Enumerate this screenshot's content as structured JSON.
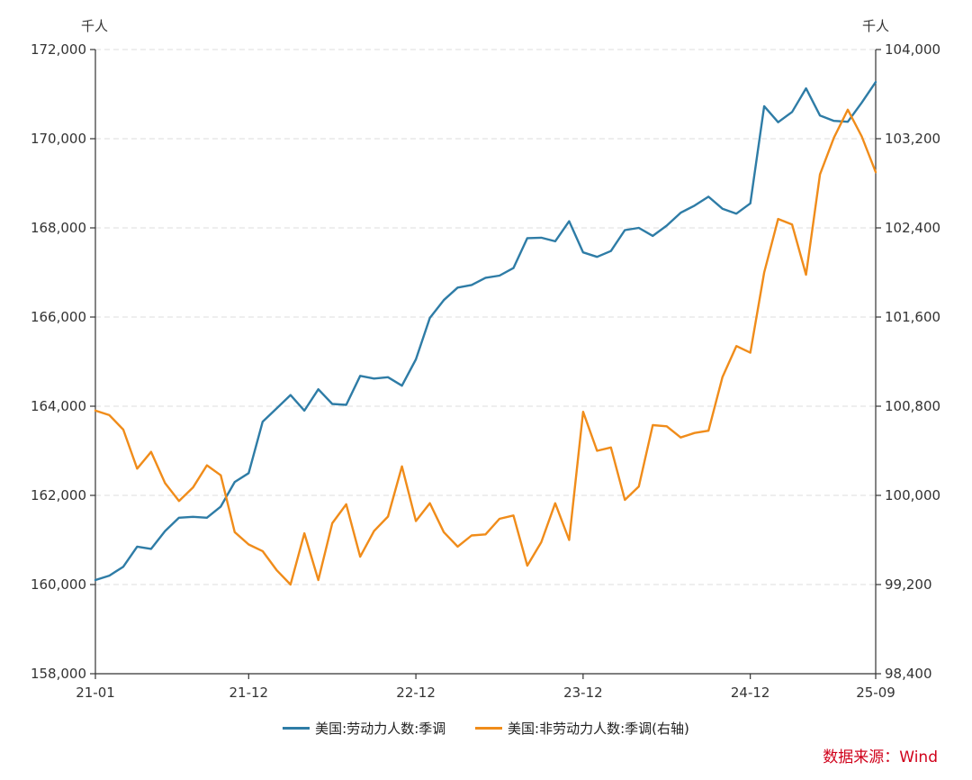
{
  "chart_data": {
    "type": "line",
    "left_unit": "千人",
    "right_unit": "千人",
    "y_left": {
      "min": 158000,
      "max": 172000,
      "ticks": [
        "158,000",
        "160,000",
        "162,000",
        "164,000",
        "166,000",
        "168,000",
        "170,000",
        "172,000"
      ],
      "tick_values": [
        158000,
        160000,
        162000,
        164000,
        166000,
        168000,
        170000,
        172000
      ]
    },
    "y_right": {
      "min": 98400,
      "max": 104000,
      "ticks": [
        "98,400",
        "99,200",
        "100,000",
        "100,800",
        "101,600",
        "102,400",
        "103,200",
        "104,000"
      ],
      "tick_values": [
        98400,
        99200,
        100000,
        100800,
        101600,
        102400,
        103200,
        104000
      ]
    },
    "x_tick_labels": [
      {
        "label": "21-01",
        "index": 0
      },
      {
        "label": "21-12",
        "index": 11
      },
      {
        "label": "22-12",
        "index": 23
      },
      {
        "label": "23-12",
        "index": 35
      },
      {
        "label": "24-12",
        "index": 47
      },
      {
        "label": "25-09",
        "index": 56
      }
    ],
    "series": [
      {
        "name": "美国:劳动力人数:季调",
        "axis": "left",
        "color": "#2e7ca6",
        "values": [
          160100,
          160200,
          160400,
          160850,
          160800,
          161200,
          161500,
          161520,
          161500,
          161750,
          162300,
          162500,
          163650,
          163950,
          164250,
          163900,
          164380,
          164050,
          164030,
          164680,
          164620,
          164650,
          164460,
          165050,
          165980,
          166380,
          166660,
          166720,
          166880,
          166930,
          167100,
          167770,
          167780,
          167700,
          168150,
          167450,
          167350,
          167480,
          167950,
          168000,
          167820,
          168050,
          168340,
          168500,
          168700,
          168430,
          168320,
          168550,
          170730,
          170370,
          170600,
          171130,
          170520,
          170400,
          170380,
          170810,
          171270
        ]
      },
      {
        "name": "美国:非劳动力人数:季调(右轴)",
        "axis": "right",
        "color": "#f08c1a",
        "values": [
          100760,
          100720,
          100590,
          100240,
          100390,
          100110,
          99950,
          100070,
          100270,
          100180,
          99670,
          99560,
          99500,
          99330,
          99200,
          99660,
          99240,
          99750,
          99920,
          99450,
          99680,
          99810,
          100260,
          99770,
          99930,
          99670,
          99540,
          99640,
          99650,
          99790,
          99820,
          99370,
          99580,
          99930,
          99600,
          100750,
          100400,
          100430,
          99960,
          100080,
          100630,
          100620,
          100520,
          100560,
          100580,
          101060,
          101340,
          101280,
          102000,
          102480,
          102430,
          101980,
          102880,
          103210,
          103460,
          103220,
          102900
        ]
      }
    ]
  },
  "legend": {
    "item1": "美国:劳动力人数:季调",
    "item2": "美国:非劳动力人数:季调(右轴)"
  },
  "source": "数据来源：Wind"
}
